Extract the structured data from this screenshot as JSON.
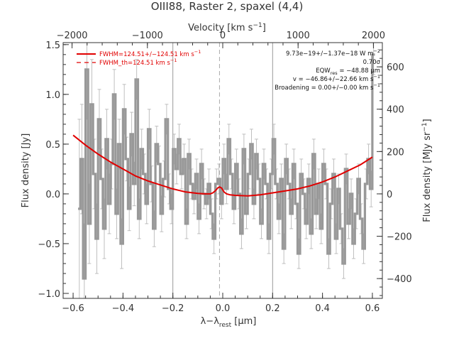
{
  "chart_data": {
    "type": "line",
    "title": "OIII88, Raster 2, spaxel (4,4)",
    "xlabel_main": "λ−λ",
    "xlabel_sub": "rest",
    "xlabel_unit": " [μm]",
    "ylabel_left": "Flux density [Jy]",
    "ylabel_right_main": "Flux density [MJy sr",
    "ylabel_right_sup": "−1",
    "ylabel_right_close": "]",
    "xlabel_top_main": "Velocity [km s",
    "xlabel_top_sup": "−1",
    "xlabel_top_close": "]",
    "xlim": [
      -0.64,
      0.64
    ],
    "ylim": [
      -1.05,
      1.52
    ],
    "x_ticks": [
      -0.6,
      -0.4,
      -0.2,
      0.0,
      0.2,
      0.4,
      0.6
    ],
    "x_tick_labels": [
      "−0.6",
      "−0.4",
      "−0.2",
      "0.0",
      "0.2",
      "0.4",
      "0.6"
    ],
    "y_ticks": [
      -1.0,
      -0.5,
      0.0,
      0.5,
      1.0,
      1.5
    ],
    "y_tick_labels": [
      "−1.0",
      "−0.5",
      "0.0",
      "0.5",
      "1.0",
      "1.5"
    ],
    "top_ticks_kms": [
      -2000,
      -1000,
      0,
      1000,
      2000
    ],
    "top_tick_labels": [
      "−2000",
      "−1000",
      "0",
      "1000",
      "2000"
    ],
    "top_kms_per_um": 3310,
    "right_ticks": [
      -400,
      -200,
      0,
      200,
      400,
      600
    ],
    "right_tick_labels": [
      "−400",
      "−200",
      "0",
      "200",
      "400",
      "600"
    ],
    "right_per_jy": 470,
    "vlines_x": [
      -0.2,
      0.2
    ],
    "center_dashed_x": -0.013,
    "colors": {
      "data": "#999999",
      "fit": "#e10000",
      "axes": "#333333",
      "guide": "#999999"
    },
    "legend": [
      {
        "label": "FWHM=124.51+/−124.51 km s",
        "sup": "−1",
        "style": "solid"
      },
      {
        "label": "FWHM_th=124.51 km s",
        "sup": "−1",
        "style": "dashed"
      }
    ],
    "annotations": [
      "9.73e−19+/−1.37e−18 W m",
      "0.70σ",
      "EQW",
      "v = −46.86+/−22.66 km s",
      "Broadening = 0.00+/−0.00 km s"
    ],
    "annotation_parts": {
      "flux_sup": "−2",
      "eqw_sub": "res",
      "eqw_value": " = −48.88 μm",
      "v_sup": "−1",
      "broad_sup": "−1"
    },
    "series": [
      {
        "name": "spectrum",
        "x": [
          -0.575,
          -0.565,
          -0.555,
          -0.545,
          -0.535,
          -0.525,
          -0.515,
          -0.505,
          -0.495,
          -0.485,
          -0.475,
          -0.465,
          -0.455,
          -0.445,
          -0.435,
          -0.425,
          -0.415,
          -0.405,
          -0.395,
          -0.385,
          -0.375,
          -0.365,
          -0.355,
          -0.345,
          -0.335,
          -0.325,
          -0.315,
          -0.305,
          -0.295,
          -0.285,
          -0.275,
          -0.265,
          -0.255,
          -0.245,
          -0.235,
          -0.225,
          -0.215,
          -0.205,
          -0.195,
          -0.185,
          -0.175,
          -0.165,
          -0.155,
          -0.145,
          -0.135,
          -0.125,
          -0.115,
          -0.105,
          -0.095,
          -0.085,
          -0.075,
          -0.065,
          -0.055,
          -0.045,
          -0.035,
          -0.025,
          -0.015,
          -0.005,
          0.005,
          0.015,
          0.025,
          0.035,
          0.045,
          0.055,
          0.065,
          0.075,
          0.085,
          0.095,
          0.105,
          0.115,
          0.125,
          0.135,
          0.145,
          0.155,
          0.165,
          0.175,
          0.185,
          0.195,
          0.205,
          0.215,
          0.225,
          0.235,
          0.245,
          0.255,
          0.265,
          0.275,
          0.285,
          0.295,
          0.305,
          0.315,
          0.325,
          0.335,
          0.345,
          0.355,
          0.365,
          0.375,
          0.385,
          0.395,
          0.405,
          0.415,
          0.425,
          0.435,
          0.445,
          0.455,
          0.465,
          0.475,
          0.485,
          0.495,
          0.505,
          0.515,
          0.525,
          0.535,
          0.545,
          0.555,
          0.565,
          0.575,
          0.585,
          0.595,
          0.605
        ],
        "y": [
          -0.15,
          0.35,
          -0.85,
          1.25,
          -0.3,
          0.9,
          0.2,
          -0.45,
          0.75,
          0.15,
          -0.35,
          0.55,
          -0.1,
          0.3,
          1.0,
          -0.2,
          0.5,
          -0.5,
          0.85,
          0.35,
          -0.15,
          0.6,
          0.1,
          1.15,
          -0.25,
          0.45,
          0.2,
          -0.1,
          0.65,
          0.1,
          -0.35,
          0.5,
          0.3,
          -0.2,
          0.15,
          0.75,
          0.05,
          -0.15,
          0.45,
          0.25,
          0.55,
          0.2,
          0.35,
          -0.3,
          0.4,
          0.1,
          -0.05,
          0.2,
          -0.25,
          0.3,
          0.0,
          -0.1,
          0.1,
          -0.2,
          -0.45,
          0.1,
          0.15,
          -0.1,
          0.35,
          0.05,
          0.55,
          0.2,
          -0.15,
          0.3,
          0.0,
          -0.4,
          0.45,
          -0.2,
          0.2,
          0.5,
          -0.1,
          0.4,
          0.15,
          -0.3,
          0.3,
          0.1,
          -0.45,
          0.2,
          0.55,
          0.1,
          -0.25,
          0.15,
          -0.55,
          0.35,
          0.1,
          -0.2,
          0.3,
          -0.1,
          -0.6,
          0.2,
          0.0,
          -0.3,
          0.15,
          -0.4,
          0.4,
          -0.2,
          0.1,
          -0.35,
          0.3,
          0.1,
          -0.6,
          -0.1,
          0.2,
          -0.45,
          0.05,
          -0.35,
          -0.7,
          0.25,
          -0.3,
          0.0,
          -0.5,
          -0.2,
          0.15,
          -0.25,
          -0.55,
          0.1,
          0.35,
          0.05,
          1.4
        ],
        "yerr": [
          0.9,
          0.55,
          0.55,
          0.5,
          0.4,
          0.45,
          0.35,
          0.35,
          0.3,
          0.3,
          0.3,
          0.3,
          0.3,
          0.25,
          0.25,
          0.25,
          0.25,
          0.25,
          0.25,
          0.22,
          0.22,
          0.22,
          0.22,
          0.2,
          0.2,
          0.2,
          0.2,
          0.2,
          0.2,
          0.18,
          0.18,
          0.18,
          0.18,
          0.18,
          0.18,
          0.15,
          0.15,
          0.15,
          0.15,
          0.15,
          0.15,
          0.15,
          0.15,
          0.15,
          0.15,
          0.15,
          0.15,
          0.15,
          0.15,
          0.15,
          0.15,
          0.15,
          0.15,
          0.15,
          0.15,
          0.15,
          0.15,
          0.15,
          0.15,
          0.15,
          0.15,
          0.15,
          0.15,
          0.15,
          0.15,
          0.15,
          0.15,
          0.15,
          0.15,
          0.15,
          0.15,
          0.15,
          0.15,
          0.15,
          0.15,
          0.15,
          0.15,
          0.15,
          0.15,
          0.15,
          0.15,
          0.15,
          0.15,
          0.15,
          0.15,
          0.15,
          0.15,
          0.15,
          0.15,
          0.15,
          0.15,
          0.15,
          0.15,
          0.15,
          0.15,
          0.15,
          0.15,
          0.15,
          0.15,
          0.15,
          0.15,
          0.15,
          0.15,
          0.15,
          0.15,
          0.15,
          0.15,
          0.15,
          0.15,
          0.15,
          0.15,
          0.15,
          0.15,
          0.15,
          0.15,
          0.15,
          0.15,
          0.18,
          0.2
        ]
      },
      {
        "name": "fit",
        "x": [
          -0.6,
          -0.55,
          -0.5,
          -0.45,
          -0.4,
          -0.35,
          -0.3,
          -0.25,
          -0.2,
          -0.15,
          -0.1,
          -0.07,
          -0.05,
          -0.04,
          -0.03,
          -0.02,
          -0.013,
          -0.005,
          0.005,
          0.015,
          0.03,
          0.05,
          0.1,
          0.15,
          0.2,
          0.25,
          0.3,
          0.35,
          0.4,
          0.45,
          0.5,
          0.55,
          0.6
        ],
        "y": [
          0.59,
          0.49,
          0.4,
          0.32,
          0.25,
          0.18,
          0.13,
          0.09,
          0.05,
          0.02,
          0.005,
          0.0,
          0.0,
          0.01,
          0.03,
          0.06,
          0.07,
          0.06,
          0.02,
          0.0,
          -0.01,
          -0.015,
          -0.02,
          -0.01,
          0.01,
          0.03,
          0.05,
          0.08,
          0.12,
          0.17,
          0.23,
          0.29,
          0.37
        ]
      }
    ]
  }
}
